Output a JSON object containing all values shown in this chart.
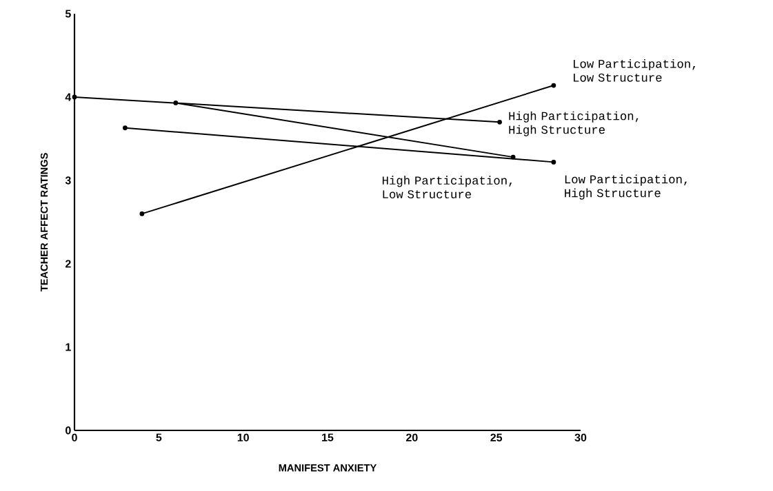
{
  "chart_data": {
    "type": "line",
    "xlabel": "MANIFEST ANXIETY",
    "ylabel": "TEACHER AFFECT RATINGS",
    "xlim": [
      0,
      30
    ],
    "xticks": [
      0,
      5,
      10,
      15,
      20,
      25,
      30
    ],
    "ylim": [
      0,
      5
    ],
    "yticks": [
      0,
      1,
      2,
      3,
      4,
      5
    ],
    "grid": false,
    "legend": false,
    "marker": "circle",
    "line_style": "solid",
    "series": [
      {
        "name": "Low Participation, Low Structure",
        "color": "#000000",
        "x": [
          4,
          28.4
        ],
        "values": [
          2.6,
          4.14
        ]
      },
      {
        "name": "High Participation, High Structure",
        "color": "#000000",
        "x": [
          0,
          25.2
        ],
        "values": [
          4.0,
          3.7
        ]
      },
      {
        "name": "High Participation, Low Structure",
        "color": "#000000",
        "x": [
          6,
          26
        ],
        "values": [
          3.93,
          3.28
        ]
      },
      {
        "name": "Low Participation, High Structure",
        "color": "#000000",
        "x": [
          3,
          28.4
        ],
        "values": [
          3.63,
          3.22
        ]
      }
    ]
  }
}
